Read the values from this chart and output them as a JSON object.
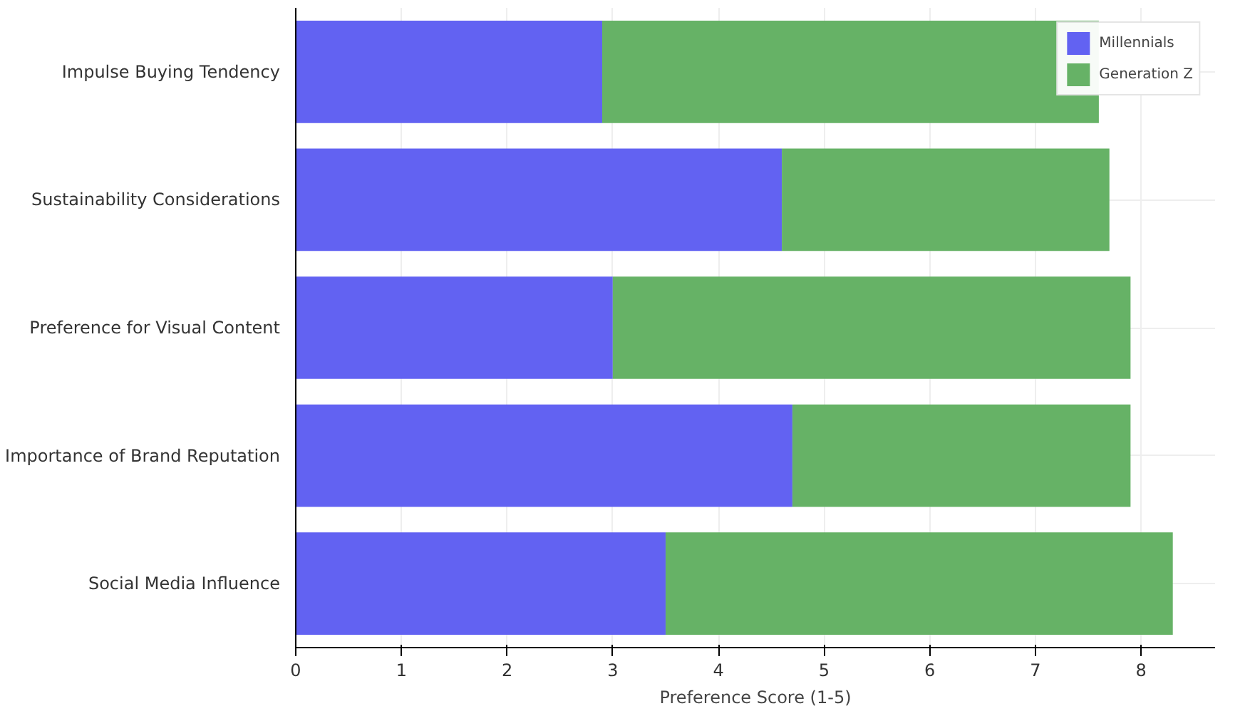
{
  "chart_data": {
    "type": "bar",
    "orientation": "horizontal",
    "stacked": true,
    "xlabel": "Preference Score (1-5)",
    "categories": [
      "Impulse Buying Tendency",
      "Sustainability Considerations",
      "Preference for Visual Content",
      "Importance of Brand Reputation",
      "Social Media Influence"
    ],
    "series": [
      {
        "name": "Millennials",
        "color": "#6262f2",
        "values": [
          2.9,
          4.6,
          3.0,
          4.7,
          3.5
        ]
      },
      {
        "name": "Generation Z",
        "color": "#66b266",
        "values": [
          4.7,
          3.1,
          4.9,
          3.2,
          4.8
        ]
      }
    ],
    "xlim": [
      0,
      8.7
    ],
    "xticks": [
      0,
      1,
      2,
      3,
      4,
      5,
      6,
      7,
      8
    ],
    "grid": true,
    "legend": "top right"
  }
}
